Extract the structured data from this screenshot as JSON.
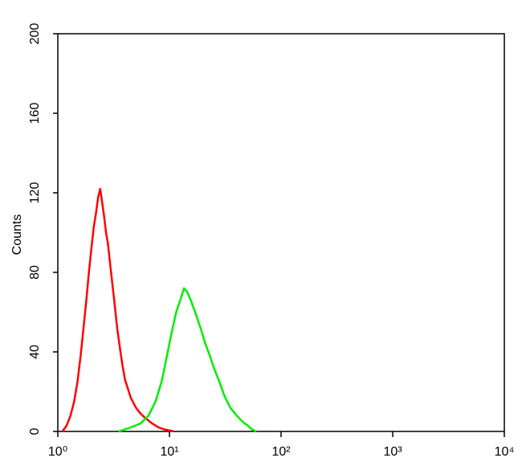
{
  "chart_data": {
    "type": "line",
    "y_label": "Counts",
    "log_x": true,
    "xlim": [
      1,
      10000
    ],
    "xticks": [
      {
        "value": 1,
        "label": "10⁰"
      },
      {
        "value": 10,
        "label": "10¹"
      },
      {
        "value": 100,
        "label": "10²"
      },
      {
        "value": 1000,
        "label": "10³"
      },
      {
        "value": 10000,
        "label": "10⁴"
      }
    ],
    "ylim": [
      0,
      200
    ],
    "yticks": [
      0,
      40,
      80,
      120,
      160,
      200
    ],
    "series": [
      {
        "color": "#ff0000",
        "x": [
          1.1,
          1.2,
          1.3,
          1.4,
          1.5,
          1.6,
          1.7,
          1.8,
          1.9,
          2.0,
          2.1,
          2.2,
          2.3,
          2.4,
          2.5,
          2.6,
          2.7,
          2.8,
          3.0,
          3.2,
          3.4,
          3.6,
          3.8,
          4.0,
          4.5,
          5.0,
          5.5,
          6.0,
          7.0,
          8.0,
          9.0,
          11
        ],
        "values": [
          0,
          3,
          8,
          15,
          25,
          38,
          52,
          66,
          80,
          92,
          103,
          110,
          118,
          122,
          115,
          108,
          100,
          95,
          80,
          66,
          52,
          42,
          33,
          26,
          17,
          12,
          9,
          7,
          4,
          2,
          1,
          0
        ]
      },
      {
        "color": "#00ee00",
        "x": [
          3.5,
          4.5,
          5.5,
          6.5,
          7.5,
          8.5,
          9.5,
          10.5,
          11.5,
          12.5,
          13.5,
          14.5,
          15.5,
          17,
          19,
          21,
          23,
          25,
          28,
          31,
          35,
          40,
          45,
          50,
          55,
          60
        ],
        "values": [
          0,
          2,
          4,
          8,
          15,
          25,
          38,
          50,
          60,
          66,
          72,
          70,
          66,
          60,
          52,
          44,
          38,
          32,
          25,
          18,
          12,
          8,
          5,
          3,
          1,
          0
        ]
      }
    ]
  }
}
